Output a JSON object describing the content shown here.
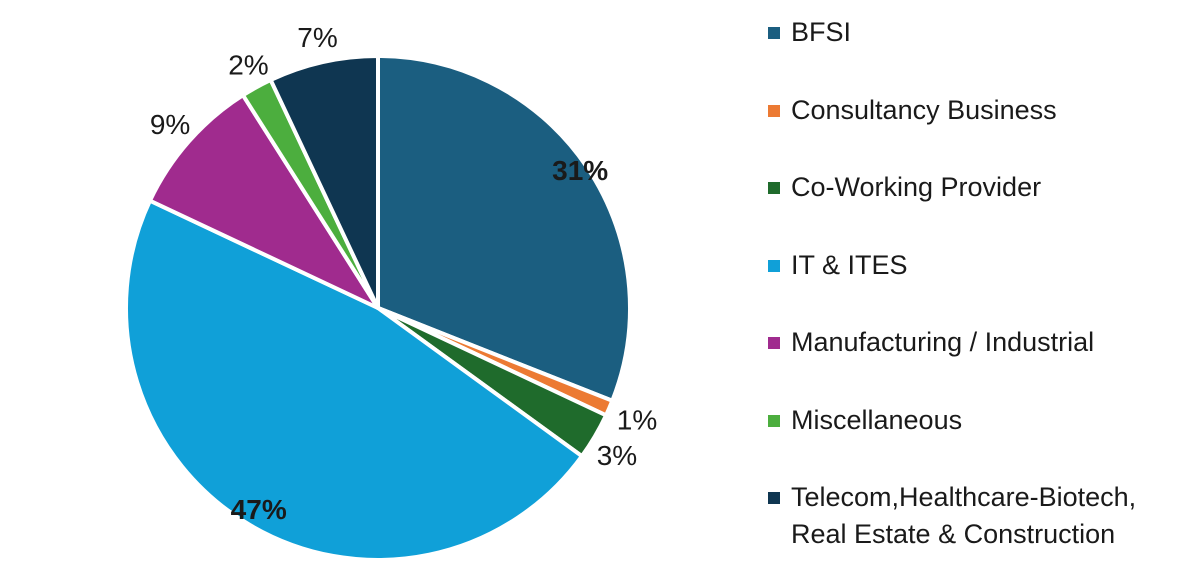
{
  "chart_data": {
    "type": "pie",
    "title": "",
    "categories": [
      "BFSI",
      "Consultancy Business",
      "Co-Working Provider",
      "IT & ITES",
      "Manufacturing / Industrial",
      "Miscellaneous",
      "Telecom,Healthcare-Biotech, Real Estate & Construction"
    ],
    "values": [
      31,
      1,
      3,
      47,
      9,
      2,
      7
    ],
    "labels": [
      "31%",
      "1%",
      "3%",
      "47%",
      "9%",
      "2%",
      "7%"
    ],
    "bold_labels": [
      true,
      false,
      false,
      true,
      false,
      false,
      false
    ],
    "colors": [
      "#1b5e80",
      "#ec7a33",
      "#1f6b2c",
      "#10a0d8",
      "#a02b8e",
      "#4cae3e",
      "#0f3651"
    ],
    "legend_position": "right",
    "start_angle_deg": 0,
    "direction": "clockwise"
  },
  "legend": {
    "items": [
      {
        "lines": [
          "BFSI"
        ]
      },
      {
        "lines": [
          "Consultancy Business"
        ]
      },
      {
        "lines": [
          "Co-Working Provider"
        ]
      },
      {
        "lines": [
          "IT & ITES"
        ]
      },
      {
        "lines": [
          "Manufacturing / Industrial"
        ]
      },
      {
        "lines": [
          "Miscellaneous"
        ]
      },
      {
        "lines": [
          "Telecom,Healthcare-Biotech,",
          "Real Estate & Construction"
        ]
      }
    ]
  }
}
